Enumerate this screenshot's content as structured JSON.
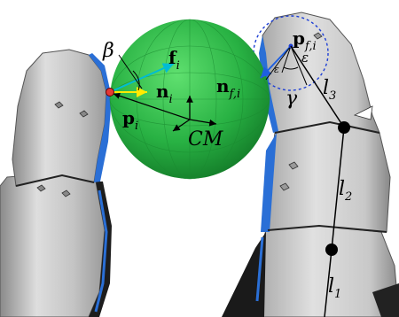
{
  "labels": {
    "beta": "β",
    "f": "f",
    "f_sub": "i",
    "n": "n",
    "n_sub": "i",
    "p": "p",
    "p_sub": "i",
    "cm": "CM",
    "nf": "n",
    "nf_sub": "f,i",
    "pf": "p",
    "pf_sub": "f,i",
    "gamma": "γ",
    "l3": "l",
    "l3_sub": "3",
    "l2": "l",
    "l2_sub": "2",
    "l1": "l",
    "l1_sub": "1",
    "epsilon": "ε"
  },
  "colors": {
    "sphere": "#2fc24a",
    "finger_metal": "#c9c9c9",
    "finger_edge": "#2a6fd6",
    "force_vector": "#00bcd4",
    "normal_vector": "#ffeb00",
    "contact_point": "#e53935",
    "fingertip_circle": "#1e3fd6"
  }
}
